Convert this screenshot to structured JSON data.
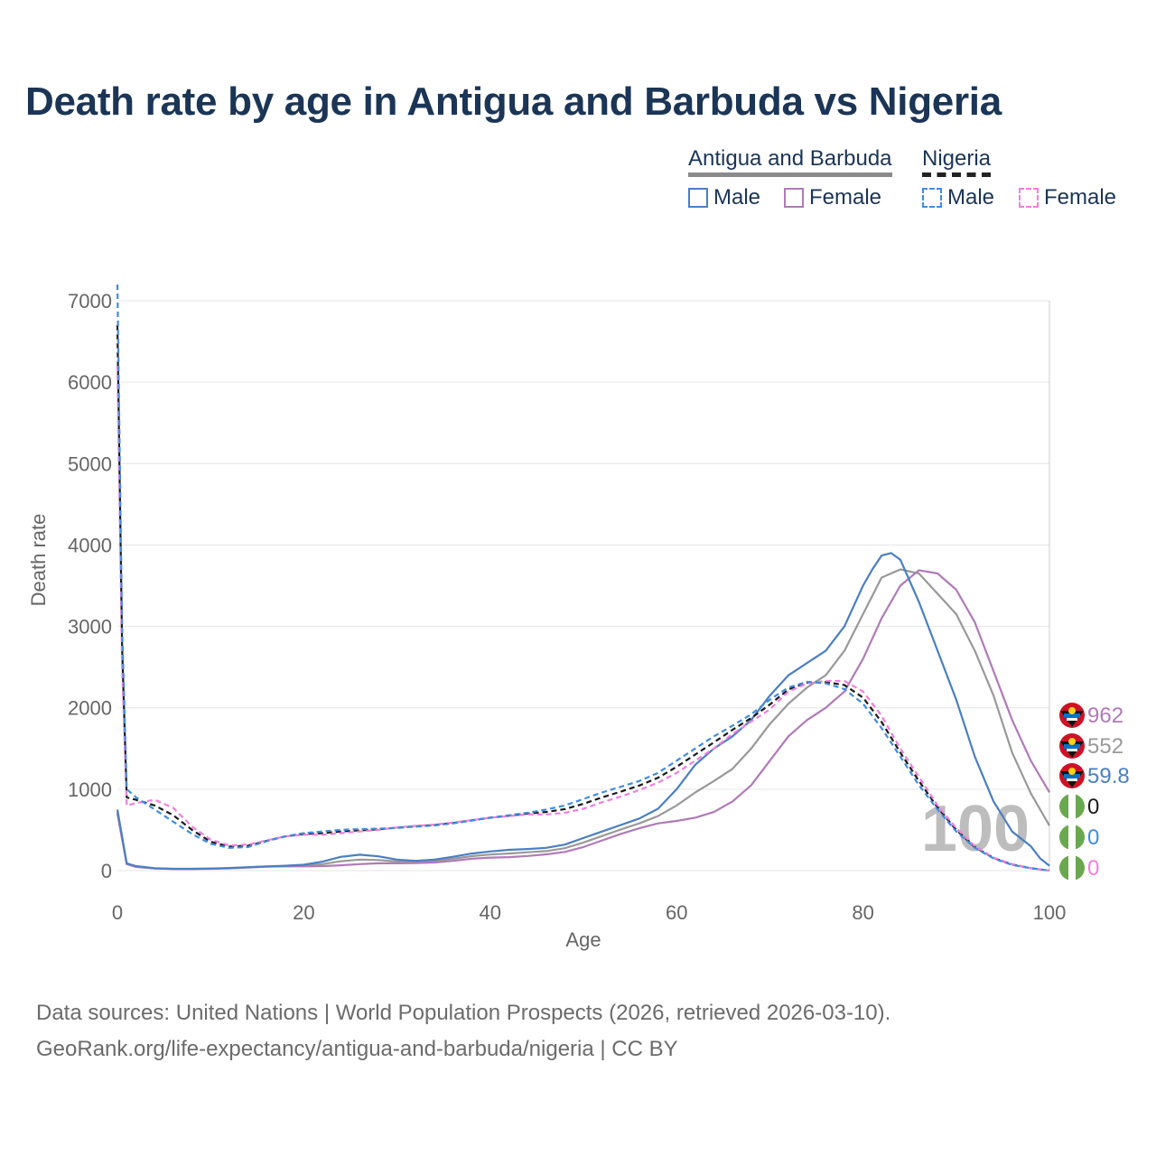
{
  "title": "Death rate by age in Antigua and Barbuda vs Nigeria",
  "legend": {
    "group1": "Antigua and Barbuda",
    "group2": "Nigeria",
    "male": "Male",
    "female": "Female"
  },
  "footer": {
    "line1": "Data sources: United Nations | World Population Prospects (2026, retrieved 2026-03-10).",
    "line2": "GeoRank.org/life-expectancy/antigua-and-barbuda/nigeria | CC BY"
  },
  "colors": {
    "ab_male": "#4a7fc1",
    "ab_female": "#b07ab8",
    "ab_total": "#999999",
    "ng_male": "#3f8de0",
    "ng_female": "#f07ee0",
    "ng_total": "#1a1a1a",
    "ag_flag_red": "#ce1126",
    "ng_flag_green": "#6aa84f"
  },
  "chart_data": {
    "type": "line",
    "xlabel": "Age",
    "ylabel": "Death rate",
    "xlim": [
      0,
      100
    ],
    "ylim": [
      0,
      7000
    ],
    "xticks": [
      0,
      20,
      40,
      60,
      80,
      100
    ],
    "yticks": [
      0,
      1000,
      2000,
      3000,
      4000,
      5000,
      6000,
      7000
    ],
    "grid": true,
    "watermark_age": "100",
    "series": [
      {
        "name": "Antigua and Barbuda Male",
        "key": "ab_male",
        "dashed": false,
        "end_label": "59.8",
        "x": [
          0,
          1,
          2,
          4,
          6,
          8,
          10,
          12,
          14,
          16,
          18,
          20,
          22,
          24,
          26,
          28,
          30,
          32,
          34,
          36,
          38,
          40,
          42,
          44,
          46,
          48,
          50,
          52,
          54,
          56,
          58,
          60,
          62,
          64,
          66,
          68,
          70,
          72,
          74,
          76,
          78,
          80,
          81,
          82,
          83,
          84,
          86,
          88,
          90,
          92,
          94,
          96,
          98,
          99,
          100
        ],
        "y": [
          750,
          90,
          55,
          30,
          22,
          22,
          25,
          32,
          42,
          52,
          60,
          72,
          110,
          170,
          195,
          175,
          135,
          120,
          135,
          170,
          210,
          235,
          255,
          265,
          280,
          320,
          400,
          480,
          560,
          640,
          760,
          1000,
          1300,
          1500,
          1650,
          1850,
          2150,
          2400,
          2550,
          2700,
          3000,
          3500,
          3700,
          3870,
          3900,
          3820,
          3300,
          2700,
          2100,
          1400,
          850,
          480,
          300,
          150,
          59.8
        ]
      },
      {
        "name": "Antigua and Barbuda Female",
        "key": "ab_female",
        "dashed": false,
        "end_label": "962",
        "x": [
          0,
          1,
          2,
          4,
          6,
          8,
          10,
          12,
          14,
          16,
          18,
          20,
          22,
          24,
          26,
          28,
          30,
          32,
          34,
          36,
          38,
          40,
          42,
          44,
          46,
          48,
          50,
          52,
          54,
          56,
          58,
          60,
          62,
          64,
          66,
          68,
          70,
          72,
          74,
          76,
          78,
          80,
          82,
          84,
          86,
          88,
          90,
          92,
          94,
          96,
          98,
          100
        ],
        "y": [
          700,
          80,
          45,
          25,
          20,
          20,
          22,
          28,
          38,
          48,
          52,
          52,
          55,
          65,
          80,
          90,
          90,
          92,
          100,
          120,
          145,
          160,
          165,
          180,
          200,
          230,
          290,
          370,
          450,
          520,
          580,
          610,
          650,
          720,
          850,
          1050,
          1350,
          1650,
          1850,
          2000,
          2200,
          2600,
          3100,
          3500,
          3690,
          3650,
          3450,
          3050,
          2450,
          1850,
          1350,
          962
        ]
      },
      {
        "name": "Antigua and Barbuda Total",
        "key": "ab_total",
        "dashed": false,
        "end_label": "552",
        "x": [
          0,
          1,
          2,
          4,
          6,
          8,
          10,
          12,
          14,
          16,
          18,
          20,
          22,
          24,
          26,
          28,
          30,
          32,
          34,
          36,
          38,
          40,
          42,
          44,
          46,
          48,
          50,
          52,
          54,
          56,
          58,
          60,
          62,
          64,
          66,
          68,
          70,
          72,
          74,
          76,
          78,
          80,
          82,
          84,
          86,
          88,
          90,
          92,
          94,
          96,
          98,
          100
        ],
        "y": [
          725,
          85,
          50,
          28,
          21,
          21,
          24,
          30,
          40,
          50,
          56,
          62,
          80,
          115,
          135,
          130,
          112,
          106,
          118,
          145,
          178,
          198,
          210,
          225,
          240,
          275,
          345,
          425,
          505,
          580,
          670,
          800,
          960,
          1100,
          1250,
          1500,
          1800,
          2050,
          2250,
          2400,
          2700,
          3150,
          3600,
          3700,
          3650,
          3400,
          3150,
          2700,
          2150,
          1450,
          950,
          552
        ]
      },
      {
        "name": "Nigeria Male",
        "key": "ng_male",
        "dashed": true,
        "end_label": "0",
        "x": [
          0,
          0.5,
          1,
          2,
          4,
          6,
          8,
          10,
          12,
          14,
          16,
          18,
          20,
          22,
          24,
          26,
          28,
          30,
          32,
          34,
          36,
          38,
          40,
          42,
          44,
          46,
          48,
          50,
          52,
          54,
          56,
          58,
          60,
          62,
          64,
          66,
          68,
          70,
          72,
          74,
          76,
          78,
          80,
          82,
          84,
          86,
          88,
          90,
          92,
          94,
          96,
          98,
          100
        ],
        "y": [
          7200,
          3000,
          1000,
          900,
          750,
          600,
          450,
          330,
          280,
          290,
          360,
          420,
          460,
          480,
          500,
          510,
          515,
          525,
          540,
          555,
          580,
          615,
          650,
          680,
          710,
          750,
          800,
          880,
          960,
          1030,
          1100,
          1200,
          1350,
          1500,
          1650,
          1780,
          1920,
          2100,
          2250,
          2320,
          2300,
          2230,
          2050,
          1750,
          1400,
          1050,
          750,
          480,
          280,
          150,
          70,
          30,
          0
        ]
      },
      {
        "name": "Nigeria Female",
        "key": "ng_female",
        "dashed": true,
        "end_label": "0",
        "x": [
          0,
          0.5,
          1,
          2,
          4,
          6,
          8,
          10,
          12,
          14,
          16,
          18,
          20,
          22,
          24,
          26,
          28,
          30,
          32,
          34,
          36,
          38,
          40,
          42,
          44,
          46,
          48,
          50,
          52,
          54,
          56,
          58,
          60,
          62,
          64,
          66,
          68,
          70,
          72,
          74,
          76,
          78,
          80,
          82,
          84,
          86,
          88,
          90,
          92,
          94,
          96,
          98,
          100
        ],
        "y": [
          6200,
          2500,
          800,
          830,
          870,
          770,
          540,
          380,
          310,
          320,
          370,
          420,
          440,
          440,
          460,
          480,
          500,
          530,
          550,
          565,
          590,
          620,
          650,
          670,
          690,
          690,
          710,
          760,
          840,
          910,
          990,
          1080,
          1200,
          1350,
          1500,
          1680,
          1830,
          1980,
          2200,
          2300,
          2330,
          2330,
          2200,
          1900,
          1500,
          1150,
          800,
          520,
          300,
          160,
          80,
          30,
          0
        ]
      },
      {
        "name": "Nigeria Total",
        "key": "ng_total",
        "dashed": true,
        "end_label": "0",
        "x": [
          0,
          0.5,
          1,
          2,
          4,
          6,
          8,
          10,
          12,
          14,
          16,
          18,
          20,
          22,
          24,
          26,
          28,
          30,
          32,
          34,
          36,
          38,
          40,
          42,
          44,
          46,
          48,
          50,
          52,
          54,
          56,
          58,
          60,
          62,
          64,
          66,
          68,
          70,
          72,
          74,
          76,
          78,
          80,
          82,
          84,
          86,
          88,
          90,
          92,
          94,
          96,
          98,
          100
        ],
        "y": [
          6700,
          2750,
          900,
          870,
          800,
          680,
          500,
          355,
          295,
          305,
          365,
          420,
          450,
          460,
          480,
          495,
          507,
          527,
          545,
          560,
          585,
          617,
          650,
          675,
          700,
          720,
          755,
          820,
          900,
          970,
          1045,
          1140,
          1275,
          1425,
          1575,
          1730,
          1875,
          2040,
          2225,
          2310,
          2315,
          2280,
          2125,
          1825,
          1450,
          1100,
          775,
          500,
          290,
          155,
          75,
          30,
          0
        ]
      }
    ]
  }
}
